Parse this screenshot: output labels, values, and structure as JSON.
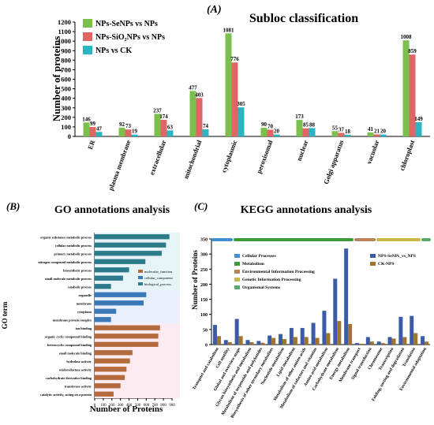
{
  "panels": {
    "a_label": "(A)",
    "b_label": "(B)",
    "c_label": "(C)"
  },
  "chart_data": [
    {
      "type": "bar",
      "title": "Subloc classification",
      "ylabel": "Number of proteins",
      "xlabel": "",
      "ylim": [
        0,
        1200
      ],
      "yticks": [
        0,
        100,
        200,
        300,
        400,
        500,
        600,
        700,
        800,
        900,
        1000,
        1100,
        1200
      ],
      "categories": [
        "ER",
        "plasma membrane",
        "extracellular",
        "mitochondrial",
        "cytoplasmic",
        "peroxisomal",
        "nuclear",
        "Golgi apparatus",
        "vacuolar",
        "chloroplast"
      ],
      "legend_position": "top-left",
      "series": [
        {
          "name": "NPs-SeNPs vs NPs",
          "color": "#7bbf4d",
          "values": [
            146,
            92,
            237,
            477,
            1081,
            90,
            173,
            55,
            41,
            1008
          ]
        },
        {
          "name": "NPs-SiO₂NPs vs NPs",
          "color": "#e06666",
          "values": [
            99,
            73,
            174,
            403,
            776,
            70,
            85,
            37,
            21,
            859
          ]
        },
        {
          "name": "NPs vs CK",
          "color": "#2bb5c2",
          "values": [
            47,
            19,
            63,
            74,
            305,
            20,
            88,
            18,
            20,
            149
          ]
        }
      ]
    },
    {
      "type": "bar",
      "orientation": "horizontal",
      "title": "GO annotations analysis",
      "xlabel": "Number of Proteins",
      "ylabel": "GO term",
      "xlim": [
        0,
        900
      ],
      "xticks": [
        0,
        100,
        200,
        300,
        400,
        500,
        600,
        700,
        800,
        900
      ],
      "legend": [
        {
          "name": "molecular_function",
          "color": "#b36a3c"
        },
        {
          "name": "cellular_component",
          "color": "#3b78b8"
        },
        {
          "name": "biological_process",
          "color": "#2c7a8a"
        }
      ],
      "categories": [
        "organic substance metabolic process",
        "cellular metabolic process",
        "primary metabolic process",
        "nitrogen compound metabolic process",
        "biosynthetic process",
        "small molecule metabolic process",
        "catabolic process",
        "organelle",
        "membrane",
        "cytoplasm",
        "membrane protein complex",
        "ion binding",
        "organic cyclic compound binding",
        "heterocyclic compound binding",
        "small molecule binding",
        "hydrolase activity",
        "oxidoreductase activity",
        "carbohydrate derivative binding",
        "transferase activity",
        "catalytic activity, acting on a protein"
      ],
      "groups": [
        "biological_process",
        "biological_process",
        "biological_process",
        "biological_process",
        "biological_process",
        "biological_process",
        "biological_process",
        "cellular_component",
        "cellular_component",
        "cellular_component",
        "cellular_component",
        "molecular_function",
        "molecular_function",
        "molecular_function",
        "molecular_function",
        "molecular_function",
        "molecular_function",
        "molecular_function",
        "molecular_function",
        "molecular_function"
      ],
      "values": [
        870,
        830,
        780,
        590,
        400,
        330,
        190,
        600,
        570,
        250,
        190,
        760,
        740,
        740,
        440,
        410,
        370,
        350,
        300,
        220
      ]
    },
    {
      "type": "bar",
      "title": "KEGG annotations analysis",
      "ylabel": "Number of Proteins",
      "xlabel": "",
      "ylim": [
        0,
        350
      ],
      "yticks": [
        0,
        50,
        100,
        150,
        200,
        250,
        300,
        350
      ],
      "legend_categories": [
        {
          "name": "Cellular Processes",
          "color": "#3f8fd1"
        },
        {
          "name": "Metabolism",
          "color": "#3a9b3a"
        },
        {
          "name": "Environmental Information Processing",
          "color": "#b9825a"
        },
        {
          "name": "Genetic Information Processing",
          "color": "#c9b84a"
        },
        {
          "name": "Organismal Systems",
          "color": "#5aa86a"
        }
      ],
      "categories": [
        "Transport and catabolism",
        "Cell motility",
        "Global and overview maps",
        "Glycan biosynthesis and metabolism",
        "Metabolism of terpenoids and polyketides",
        "Biosynthesis of other secondary metabolites",
        "Nucleotide metabolism",
        "Lipid metabolism",
        "Metabolism of other amino acids",
        "Metabolism of cofactors and vitamins",
        "Amino acid metabolism",
        "Carbohydrate metabolism",
        "Energy metabolism",
        "Membrane transport",
        "Signal transduction",
        "Chromosome",
        "Transcription",
        "Folding, sorting and degradation",
        "Translation",
        "Environmental adaptation"
      ],
      "series": [
        {
          "name": "NPS-SeNPs_vs_NPS",
          "color": "#3b5ba8",
          "values": [
            65,
            15,
            85,
            15,
            12,
            30,
            35,
            55,
            55,
            72,
            112,
            218,
            318,
            5,
            25,
            10,
            25,
            92,
            95,
            28
          ]
        },
        {
          "name": "CK-NPS",
          "color": "#a0732e",
          "values": [
            28,
            8,
            28,
            8,
            6,
            22,
            18,
            25,
            25,
            22,
            38,
            78,
            68,
            3,
            10,
            5,
            20,
            25,
            38,
            10
          ]
        }
      ]
    }
  ]
}
